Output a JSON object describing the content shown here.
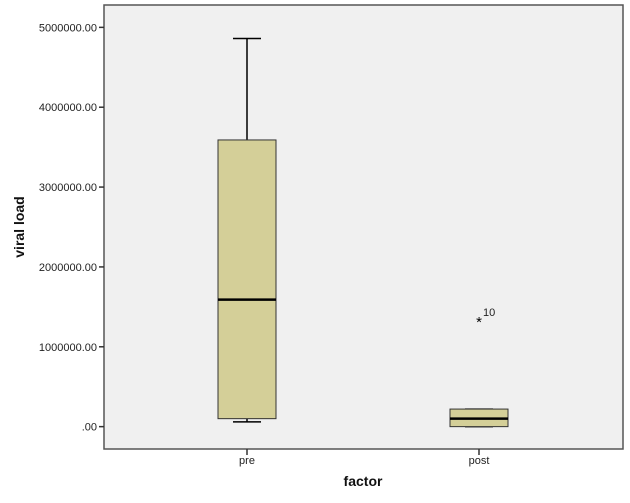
{
  "chart_data": {
    "type": "boxplot",
    "title": "",
    "xlabel": "factor",
    "ylabel": "viral load",
    "ylim": [
      -280000,
      5280000
    ],
    "yticks": [
      0,
      1000000,
      2000000,
      3000000,
      4000000,
      5000000
    ],
    "ytick_labels": [
      ".00",
      "1000000.00",
      "2000000.00",
      "3000000.00",
      "4000000.00",
      "5000000.00"
    ],
    "categories": [
      "pre",
      "post"
    ],
    "boxes": [
      {
        "category": "pre",
        "whisker_low": 60000,
        "q1": 100000,
        "median": 1590000,
        "q3": 3590000,
        "whisker_high": 4860000,
        "outliers": []
      },
      {
        "category": "post",
        "whisker_low": 0,
        "q1": 0,
        "median": 100000,
        "q3": 220000,
        "whisker_high": 220000,
        "outliers": [
          {
            "value": 1320000,
            "label": "10",
            "marker": "star"
          }
        ]
      }
    ],
    "grid": false,
    "colors": {
      "box_fill": "#d4cf98",
      "plot_bg": "#f0f0f0",
      "line": "#000000"
    }
  }
}
